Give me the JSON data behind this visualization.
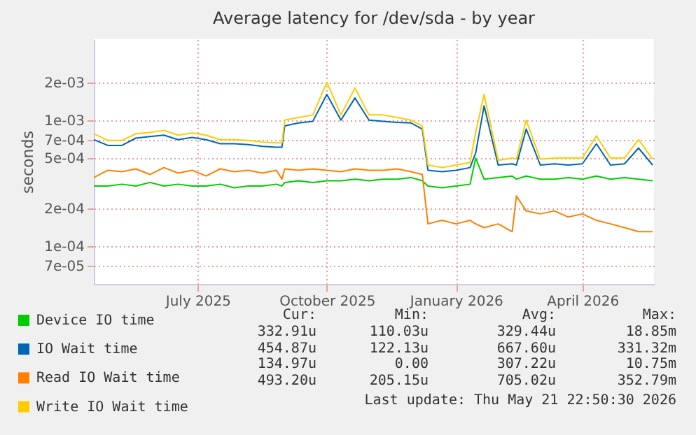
{
  "chart_data": {
    "type": "line",
    "title": "Average latency for /dev/sda - by year",
    "ylabel": "seconds",
    "log": "y",
    "grid": true,
    "legend": "bottom left",
    "marker": "none",
    "line_style": "solid",
    "x": [
      "2025-04-18",
      "2025-04-28",
      "2025-05-08",
      "2025-05-18",
      "2025-05-28",
      "2025-06-07",
      "2025-06-17",
      "2025-06-27",
      "2025-07-07",
      "2025-07-17",
      "2025-07-27",
      "2025-08-06",
      "2025-08-16",
      "2025-08-26",
      "2025-08-30",
      "2025-09-01",
      "2025-09-11",
      "2025-09-21",
      "2025-10-01",
      "2025-10-11",
      "2025-10-21",
      "2025-10-31",
      "2025-11-10",
      "2025-11-20",
      "2025-11-30",
      "2025-12-08",
      "2025-12-12",
      "2025-12-22",
      "2026-01-01",
      "2026-01-11",
      "2026-01-15",
      "2026-01-21",
      "2026-01-31",
      "2026-02-10",
      "2026-02-13",
      "2026-02-20",
      "2026-03-02",
      "2026-03-12",
      "2026-03-22",
      "2026-04-01",
      "2026-04-11",
      "2026-04-21",
      "2026-05-01",
      "2026-05-11",
      "2026-05-21"
    ],
    "xlim": [
      "2025-04-18",
      "2026-05-22"
    ],
    "xticks": [
      {
        "value": "2025-07-01",
        "label": "July 2025"
      },
      {
        "value": "2025-10-01",
        "label": "October 2025"
      },
      {
        "value": "2026-01-01",
        "label": "January 2026"
      },
      {
        "value": "2026-04-01",
        "label": "April 2026"
      }
    ],
    "ylim": [
      5e-05,
      0.0044
    ],
    "yticks": [
      {
        "value": 7e-05,
        "label": "7e-05"
      },
      {
        "value": 0.0001,
        "label": "1e-04"
      },
      {
        "value": 0.0002,
        "label": "2e-04"
      },
      {
        "value": 0.0005,
        "label": "5e-04"
      },
      {
        "value": 0.0007,
        "label": "7e-04"
      },
      {
        "value": 0.001,
        "label": "1e-03"
      },
      {
        "value": 0.002,
        "label": "2e-03"
      }
    ],
    "series": [
      {
        "name": "Device IO time",
        "color": "#00cc00",
        "values": [
          0.0003,
          0.0003,
          0.00031,
          0.0003,
          0.00032,
          0.0003,
          0.00031,
          0.0003,
          0.0003,
          0.00031,
          0.00029,
          0.0003,
          0.0003,
          0.00031,
          0.0003,
          0.00032,
          0.00033,
          0.00032,
          0.00033,
          0.00033,
          0.00034,
          0.00033,
          0.00034,
          0.00034,
          0.00035,
          0.00033,
          0.0003,
          0.00029,
          0.0003,
          0.00031,
          0.0005,
          0.00034,
          0.00035,
          0.00036,
          0.00034,
          0.00036,
          0.00034,
          0.00034,
          0.00035,
          0.00034,
          0.00036,
          0.00034,
          0.00035,
          0.00034,
          0.00033
        ]
      },
      {
        "name": "IO Wait time",
        "color": "#0066b3",
        "values": [
          0.0007,
          0.00063,
          0.00063,
          0.00072,
          0.00074,
          0.00076,
          0.0007,
          0.00073,
          0.0007,
          0.00065,
          0.00065,
          0.00064,
          0.00062,
          0.00061,
          0.00061,
          0.0009,
          0.00095,
          0.00098,
          0.0016,
          0.001,
          0.0015,
          0.001,
          0.00098,
          0.00096,
          0.00095,
          0.00085,
          0.0004,
          0.00039,
          0.0004,
          0.00042,
          0.00055,
          0.0013,
          0.00044,
          0.00045,
          0.00044,
          0.00085,
          0.00044,
          0.00045,
          0.00044,
          0.00045,
          0.00065,
          0.00044,
          0.00045,
          0.0006,
          0.00044
        ]
      },
      {
        "name": "Read IO Wait time",
        "color": "#ff8000",
        "values": [
          0.00035,
          0.0004,
          0.00039,
          0.00041,
          0.00037,
          0.00042,
          0.00038,
          0.0004,
          0.00036,
          0.00041,
          0.00039,
          0.0004,
          0.00038,
          0.0004,
          0.00034,
          0.00041,
          0.0004,
          0.00041,
          0.0004,
          0.00039,
          0.00041,
          0.0004,
          0.0004,
          0.00041,
          0.00039,
          0.00037,
          0.00015,
          0.00016,
          0.00015,
          0.00016,
          0.00015,
          0.00014,
          0.00015,
          0.00013,
          0.00025,
          0.00019,
          0.00018,
          0.00019,
          0.00017,
          0.00018,
          0.00016,
          0.00015,
          0.00014,
          0.00013,
          0.00013
        ]
      },
      {
        "name": "Write IO Wait time",
        "color": "#ffcc00",
        "values": [
          0.00078,
          0.00069,
          0.00069,
          0.00078,
          0.0008,
          0.00083,
          0.00076,
          0.00079,
          0.00076,
          0.0007,
          0.0007,
          0.00069,
          0.00067,
          0.00066,
          0.00066,
          0.001,
          0.00105,
          0.0011,
          0.002,
          0.0011,
          0.0018,
          0.0011,
          0.0011,
          0.00105,
          0.001,
          0.0009,
          0.00044,
          0.00042,
          0.00044,
          0.00046,
          0.0008,
          0.0016,
          0.00048,
          0.0005,
          0.00049,
          0.001,
          0.00049,
          0.0005,
          0.0005,
          0.0005,
          0.00075,
          0.0005,
          0.0005,
          0.0007,
          0.00049
        ]
      }
    ],
    "annotations": [
      "Cur:",
      "Min:",
      "Avg:",
      "Max:",
      "332.91u",
      "110.03u",
      "329.44u",
      "18.85m",
      "454.87u",
      "122.13u",
      "667.60u",
      "331.32m",
      "134.97u",
      "0.00",
      "307.22u",
      "10.75m",
      "493.20u",
      "205.15u",
      "705.02u",
      "352.79m",
      "Last update: Thu May 21 22:50:30 2026"
    ]
  }
}
